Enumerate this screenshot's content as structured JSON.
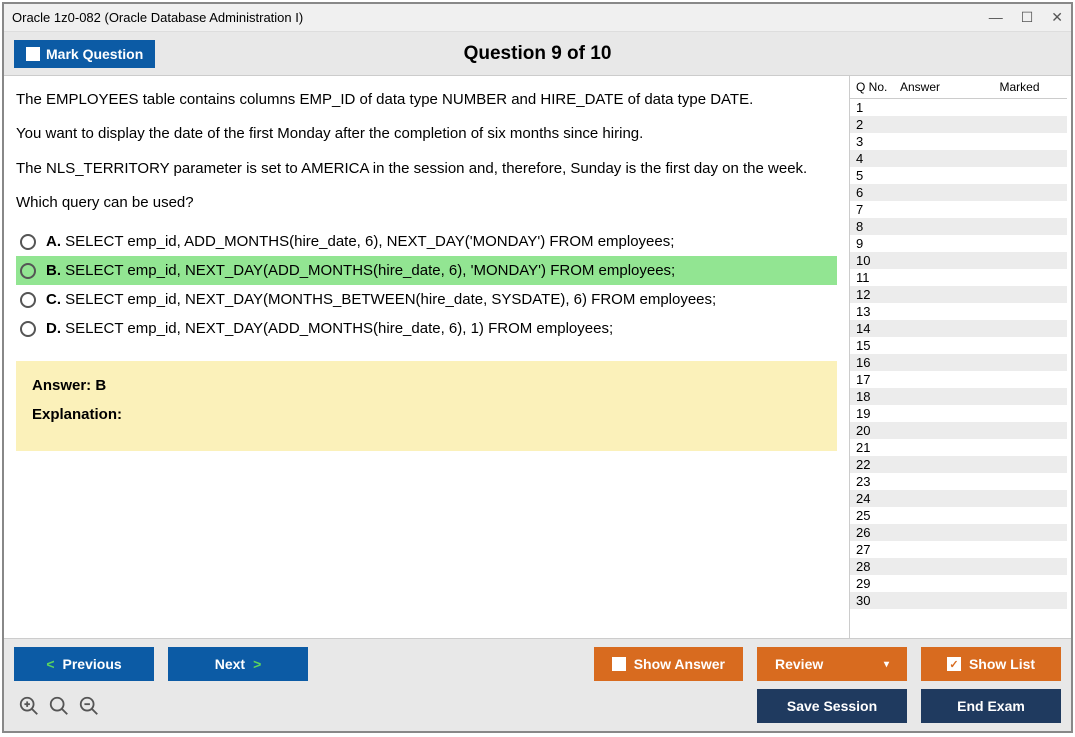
{
  "window": {
    "title": "Oracle 1z0-082 (Oracle Database Administration I)"
  },
  "toolbar": {
    "mark_label": "Mark Question",
    "counter": "Question 9 of 10"
  },
  "question": {
    "paragraphs": [
      "The EMPLOYEES table contains columns EMP_ID of data type NUMBER and HIRE_DATE of data type DATE.",
      "You want to display the date of the first Monday after the completion of six months since hiring.",
      "The NLS_TERRITORY parameter is set to AMERICA in the session and, therefore, Sunday is the first day on the week.",
      "Which query can be used?"
    ],
    "choices": [
      {
        "letter": "A.",
        "text": "SELECT emp_id, ADD_MONTHS(hire_date, 6), NEXT_DAY('MONDAY') FROM employees;",
        "highlight": false
      },
      {
        "letter": "B.",
        "text": "SELECT emp_id, NEXT_DAY(ADD_MONTHS(hire_date, 6), 'MONDAY') FROM employees;",
        "highlight": true
      },
      {
        "letter": "C.",
        "text": "SELECT emp_id, NEXT_DAY(MONTHS_BETWEEN(hire_date, SYSDATE), 6) FROM employees;",
        "highlight": false
      },
      {
        "letter": "D.",
        "text": "SELECT emp_id, NEXT_DAY(ADD_MONTHS(hire_date, 6), 1) FROM employees;",
        "highlight": false
      }
    ]
  },
  "answer_box": {
    "answer_label": "Answer: B",
    "explanation_label": "Explanation:"
  },
  "side": {
    "headers": {
      "qno": "Q No.",
      "answer": "Answer",
      "marked": "Marked"
    },
    "row_count": 30
  },
  "footer": {
    "previous": "Previous",
    "next": "Next",
    "show_answer": "Show Answer",
    "review": "Review",
    "show_list": "Show List",
    "save_session": "Save Session",
    "end_exam": "End Exam"
  },
  "colors": {
    "blue": "#0c5ba5",
    "orange": "#d86b1f",
    "darkblue": "#1f3a5f",
    "highlight": "#92e592",
    "answerbox": "#fbf1ba"
  }
}
